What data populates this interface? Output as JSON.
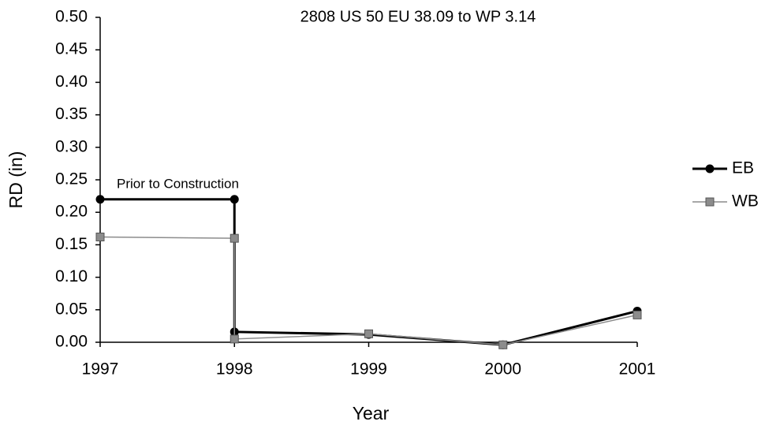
{
  "chart_data": {
    "type": "line",
    "title": "2808 US 50 EU 38.09 to WP 3.14",
    "x_label": "Year",
    "y_label": "RD (in)",
    "annotation": "Prior to Construction",
    "x": [
      1997,
      1998,
      1998,
      1999,
      2000,
      2001
    ],
    "series": [
      {
        "name": "EB",
        "color": "#000000",
        "marker": "circle",
        "values": [
          0.22,
          0.22,
          0.016,
          0.012,
          -0.004,
          0.048
        ]
      },
      {
        "name": "WB",
        "color": "#8c8c8c",
        "marker": "square",
        "values": [
          0.162,
          0.16,
          0.005,
          0.013,
          -0.004,
          0.042
        ]
      }
    ],
    "xlim": [
      1997,
      2001
    ],
    "xticks": [
      1997,
      1998,
      1999,
      2000,
      2001
    ],
    "ylim": [
      0,
      0.5
    ],
    "yticks": [
      {
        "value": 0,
        "label": "0.00"
      },
      0.05,
      {
        "value": 0.1,
        "label": "0.10"
      },
      0.15,
      {
        "value": 0.2,
        "label": "0.20"
      },
      0.25,
      {
        "value": 0.3,
        "label": "0.30"
      },
      0.35,
      {
        "value": 0.4,
        "label": "0.40"
      },
      0.45,
      {
        "value": 0.5,
        "label": "0.50"
      }
    ],
    "grid": false,
    "legend": "right"
  }
}
